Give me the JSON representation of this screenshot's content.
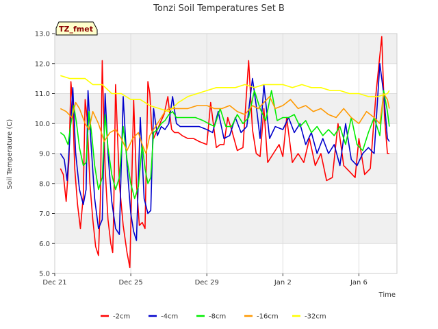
{
  "chart_data": {
    "type": "line",
    "title": "Tonzi Soil Temperatures Set B",
    "xlabel": "Time",
    "ylabel": "Soil Temperature (C)",
    "badge": "TZ_fmet",
    "xlim": [
      0,
      18
    ],
    "ylim": [
      5.0,
      13.0
    ],
    "yticks": [
      5.0,
      6.0,
      7.0,
      8.0,
      9.0,
      10.0,
      11.0,
      12.0,
      13.0
    ],
    "ytick_labels": [
      "5.0",
      "6.0",
      "7.0",
      "8.0",
      "9.0",
      "10.0",
      "11.0",
      "12.0",
      "13.0"
    ],
    "xticks": [
      0,
      4,
      8,
      12,
      16
    ],
    "xtick_labels": [
      "Dec 21",
      "Dec 25",
      "Dec 29",
      "Jan 2",
      "Jan 6"
    ],
    "grid": true,
    "legend_position": "bottom",
    "series": [
      {
        "name": "-2cm",
        "color": "#ff0000",
        "x": [
          0.3,
          0.45,
          0.6,
          0.75,
          0.85,
          0.95,
          1.05,
          1.2,
          1.35,
          1.5,
          1.6,
          1.7,
          1.85,
          2.0,
          2.15,
          2.3,
          2.4,
          2.5,
          2.65,
          2.8,
          2.95,
          3.05,
          3.1,
          3.2,
          3.4,
          3.6,
          3.8,
          3.95,
          4.05,
          4.15,
          4.3,
          4.45,
          4.6,
          4.75,
          4.9,
          5.0,
          5.1,
          5.2,
          5.4,
          5.6,
          5.75,
          5.85,
          5.95,
          6.05,
          6.15,
          6.3,
          6.5,
          6.7,
          7.0,
          7.3,
          7.6,
          8.0,
          8.2,
          8.5,
          8.7,
          8.9,
          9.1,
          9.3,
          9.6,
          9.9,
          10.2,
          10.4,
          10.6,
          10.8,
          11.0,
          11.2,
          11.5,
          11.8,
          12.0,
          12.2,
          12.5,
          12.8,
          13.1,
          13.4,
          13.7,
          14.0,
          14.3,
          14.6,
          14.9,
          15.2,
          15.5,
          15.8,
          16.0,
          16.3,
          16.6,
          16.9,
          17.2,
          17.35,
          17.5,
          17.6
        ],
        "y": [
          8.5,
          8.3,
          7.4,
          8.8,
          11.4,
          10.5,
          8.5,
          7.3,
          6.5,
          7.6,
          10.8,
          10.2,
          8.0,
          6.8,
          5.9,
          5.6,
          7.5,
          12.1,
          8.5,
          6.8,
          6.0,
          5.7,
          7.0,
          11.3,
          8.0,
          6.6,
          5.7,
          5.2,
          8.0,
          10.8,
          8.0,
          6.6,
          6.7,
          6.5,
          11.4,
          11.0,
          9.8,
          9.5,
          9.8,
          10.1,
          10.3,
          10.6,
          10.9,
          10.3,
          9.8,
          9.7,
          9.7,
          9.6,
          9.5,
          9.5,
          9.4,
          9.3,
          10.7,
          9.2,
          9.3,
          9.3,
          10.2,
          9.8,
          9.1,
          9.2,
          12.1,
          9.8,
          9.0,
          8.9,
          10.5,
          8.7,
          9.0,
          9.3,
          8.9,
          10.2,
          8.7,
          9.0,
          8.7,
          9.5,
          8.6,
          9.0,
          8.1,
          8.2,
          10.0,
          8.6,
          8.4,
          8.2,
          9.5,
          8.3,
          8.5,
          11.0,
          12.9,
          10.2,
          9.0,
          9.0
        ]
      },
      {
        "name": "-4cm",
        "color": "#0000cc",
        "x": [
          0.3,
          0.5,
          0.65,
          0.8,
          0.95,
          1.1,
          1.3,
          1.5,
          1.65,
          1.75,
          1.9,
          2.1,
          2.3,
          2.5,
          2.65,
          2.8,
          3.0,
          3.2,
          3.4,
          3.6,
          3.8,
          4.0,
          4.15,
          4.3,
          4.5,
          4.7,
          4.9,
          5.05,
          5.2,
          5.4,
          5.6,
          5.8,
          6.0,
          6.2,
          6.4,
          6.6,
          6.8,
          7.2,
          7.6,
          8.0,
          8.3,
          8.6,
          8.9,
          9.2,
          9.5,
          9.8,
          10.1,
          10.4,
          10.6,
          10.8,
          11.0,
          11.3,
          11.6,
          12.0,
          12.3,
          12.6,
          12.9,
          13.2,
          13.5,
          13.8,
          14.1,
          14.4,
          14.7,
          15.0,
          15.3,
          15.6,
          15.9,
          16.2,
          16.5,
          16.8,
          17.1,
          17.3,
          17.5,
          17.6
        ],
        "y": [
          9.0,
          8.8,
          8.1,
          9.6,
          11.2,
          9.0,
          7.8,
          7.3,
          7.8,
          11.1,
          9.4,
          7.5,
          6.5,
          6.8,
          11.0,
          9.0,
          7.4,
          6.5,
          6.3,
          10.9,
          8.6,
          7.0,
          6.4,
          6.1,
          10.2,
          7.5,
          7.0,
          7.1,
          10.5,
          9.6,
          9.9,
          9.8,
          10.0,
          10.9,
          10.0,
          9.9,
          9.9,
          9.9,
          9.9,
          9.8,
          9.7,
          10.4,
          9.5,
          9.6,
          10.2,
          9.7,
          9.9,
          11.5,
          10.6,
          9.5,
          11.3,
          9.5,
          9.9,
          9.8,
          10.2,
          9.7,
          10.0,
          9.3,
          9.7,
          9.0,
          9.5,
          9.0,
          9.3,
          8.6,
          10.0,
          8.8,
          8.6,
          9.0,
          9.2,
          9.0,
          12.0,
          11.0,
          9.5,
          9.4
        ]
      },
      {
        "name": "-8cm",
        "color": "#00ee00",
        "x": [
          0.3,
          0.5,
          0.7,
          0.85,
          1.0,
          1.15,
          1.3,
          1.5,
          1.65,
          1.8,
          1.95,
          2.1,
          2.3,
          2.5,
          2.65,
          2.8,
          3.0,
          3.2,
          3.4,
          3.6,
          3.8,
          4.0,
          4.2,
          4.4,
          4.6,
          4.75,
          4.9,
          5.05,
          5.2,
          5.4,
          5.6,
          5.8,
          6.0,
          6.2,
          6.4,
          6.7,
          7.0,
          7.4,
          7.8,
          8.1,
          8.4,
          8.7,
          9.0,
          9.3,
          9.6,
          9.9,
          10.2,
          10.5,
          10.8,
          11.1,
          11.4,
          11.7,
          12.0,
          12.3,
          12.6,
          12.9,
          13.2,
          13.5,
          13.8,
          14.1,
          14.4,
          14.7,
          15.0,
          15.3,
          15.6,
          15.9,
          16.2,
          16.5,
          16.8,
          17.1,
          17.3,
          17.5,
          17.6
        ],
        "y": [
          9.7,
          9.6,
          9.3,
          10.0,
          10.6,
          10.0,
          9.2,
          8.6,
          8.7,
          10.4,
          9.6,
          8.6,
          7.8,
          8.2,
          10.3,
          9.2,
          8.3,
          7.8,
          8.2,
          9.9,
          8.8,
          8.0,
          7.5,
          7.9,
          9.3,
          8.5,
          8.0,
          8.2,
          9.7,
          9.8,
          10.0,
          10.1,
          10.3,
          10.4,
          10.2,
          10.2,
          10.2,
          10.2,
          10.1,
          10.0,
          9.9,
          10.5,
          9.9,
          9.9,
          10.3,
          10.0,
          10.2,
          11.1,
          10.5,
          10.1,
          11.1,
          10.1,
          10.2,
          10.2,
          10.3,
          9.9,
          10.1,
          9.7,
          9.9,
          9.6,
          9.8,
          9.6,
          9.9,
          9.3,
          10.2,
          9.3,
          9.1,
          9.7,
          10.2,
          9.6,
          11.1,
          10.4,
          9.9
        ]
      },
      {
        "name": "-16cm",
        "color": "#ff9900",
        "x": [
          0.3,
          0.6,
          0.9,
          1.1,
          1.3,
          1.6,
          1.8,
          2.0,
          2.3,
          2.6,
          2.9,
          3.2,
          3.5,
          3.8,
          4.1,
          4.4,
          4.6,
          4.8,
          5.0,
          5.2,
          5.4,
          5.6,
          5.8,
          6.0,
          6.3,
          6.6,
          7.0,
          7.5,
          8.0,
          8.4,
          8.8,
          9.2,
          9.6,
          10.0,
          10.4,
          10.7,
          11.0,
          11.3,
          11.6,
          12.0,
          12.4,
          12.8,
          13.2,
          13.6,
          14.0,
          14.4,
          14.8,
          15.2,
          15.6,
          16.0,
          16.4,
          16.8,
          17.1,
          17.3,
          17.5,
          17.6
        ],
        "y": [
          10.5,
          10.4,
          10.2,
          10.7,
          10.5,
          10.0,
          9.8,
          10.4,
          10.0,
          9.4,
          9.7,
          9.8,
          9.5,
          9.1,
          9.5,
          9.7,
          9.3,
          9.0,
          9.6,
          9.8,
          10.0,
          10.2,
          10.4,
          10.5,
          10.5,
          10.5,
          10.5,
          10.6,
          10.6,
          10.5,
          10.5,
          10.6,
          10.4,
          10.3,
          10.6,
          10.5,
          10.7,
          10.9,
          10.5,
          10.6,
          10.8,
          10.5,
          10.6,
          10.4,
          10.5,
          10.3,
          10.2,
          10.5,
          10.2,
          10.0,
          10.4,
          10.2,
          10.0,
          11.0,
          10.8,
          10.5
        ]
      },
      {
        "name": "-32cm",
        "color": "#ffff00",
        "x": [
          0.3,
          0.8,
          1.2,
          1.6,
          2.0,
          2.5,
          3.0,
          3.5,
          4.0,
          4.5,
          5.0,
          5.5,
          6.0,
          6.5,
          7.0,
          7.5,
          8.0,
          8.5,
          9.0,
          9.5,
          10.0,
          10.5,
          11.0,
          11.5,
          12.0,
          12.5,
          13.0,
          13.5,
          14.0,
          14.5,
          15.0,
          15.5,
          16.0,
          16.5,
          17.0,
          17.5,
          17.6
        ],
        "y": [
          11.6,
          11.5,
          11.5,
          11.5,
          11.3,
          11.3,
          11.0,
          11.0,
          10.8,
          10.8,
          10.6,
          10.5,
          10.4,
          10.7,
          10.9,
          11.0,
          11.1,
          11.2,
          11.2,
          11.2,
          11.3,
          11.2,
          11.3,
          11.3,
          11.3,
          11.2,
          11.3,
          11.2,
          11.2,
          11.1,
          11.1,
          11.0,
          11.0,
          10.9,
          10.9,
          11.0,
          11.1
        ]
      }
    ]
  }
}
